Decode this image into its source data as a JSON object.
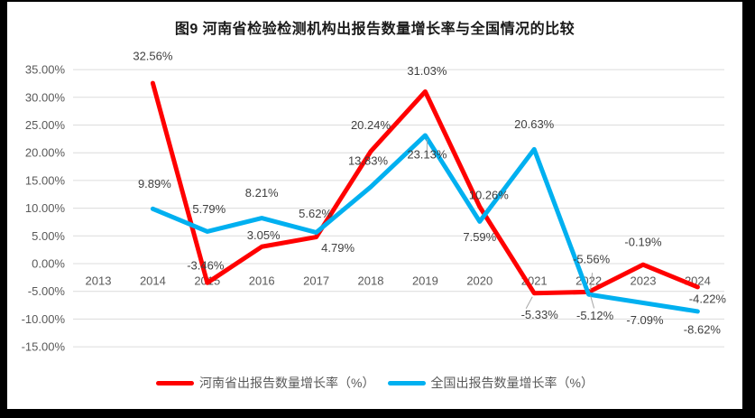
{
  "frame": {
    "border_color": "#000000",
    "background": "#ffffff"
  },
  "chart_data": {
    "type": "line",
    "title": "图9  河南省检验检测机构出报告数量增长率与全国情况的比较",
    "categories": [
      "2013",
      "2014",
      "2015",
      "2016",
      "2017",
      "2018",
      "2019",
      "2020",
      "2021",
      "2022",
      "2023",
      "2024"
    ],
    "series": [
      {
        "key": "henan-province",
        "name": "河南省出报告数量增长率（%）",
        "color": "#FF0000",
        "values": [
          null,
          32.56,
          -3.46,
          3.05,
          4.79,
          20.24,
          31.03,
          10.26,
          -5.33,
          -5.12,
          -0.19,
          -4.22
        ],
        "labels": [
          null,
          "32.56%",
          "-3.46%",
          "3.05%",
          "4.79%",
          "20.24%",
          "31.03%",
          "10.26%",
          "-5.33%",
          "-5.12%",
          "-0.19%",
          "-4.22%"
        ],
        "label_offsets": [
          null,
          [
            0,
            -30
          ],
          [
            -2,
            -19
          ],
          [
            2,
            -13
          ],
          [
            24,
            12
          ],
          [
            0,
            -29
          ],
          [
            2,
            -23
          ],
          [
            10,
            -13
          ],
          [
            6,
            24
          ],
          [
            7,
            26
          ],
          [
            0,
            -25
          ],
          [
            11,
            13
          ]
        ]
      },
      {
        "key": "national",
        "name": "全国出报告数量增长率（%）",
        "color": "#00B0F0",
        "values": [
          null,
          9.89,
          5.79,
          8.21,
          5.62,
          13.83,
          23.13,
          7.59,
          20.63,
          -5.56,
          -7.09,
          -8.62
        ],
        "labels": [
          null,
          "9.89%",
          "5.79%",
          "8.21%",
          "5.62%",
          "13.83%",
          "23.13%",
          "7.59%",
          "20.63%",
          "-5.56%",
          "-7.09%",
          "-8.62%"
        ],
        "label_offsets": [
          null,
          [
            2,
            -28
          ],
          [
            2,
            -25
          ],
          [
            0,
            -28
          ],
          [
            -1,
            -21
          ],
          [
            -3,
            -29
          ],
          [
            2,
            21
          ],
          [
            0,
            17
          ],
          [
            0,
            -28
          ],
          [
            3,
            -39
          ],
          [
            2,
            19
          ],
          [
            5,
            20
          ]
        ]
      }
    ],
    "y_axis": {
      "tick_labels": [
        "35.00%",
        "30.00%",
        "25.00%",
        "20.00%",
        "15.00%",
        "10.00%",
        "5.00%",
        "0.00%",
        "-5.00%",
        "-10.00%",
        "-15.00%"
      ],
      "min": -15,
      "max": 35,
      "step": 5
    },
    "leader_lines": [
      {
        "series": 0,
        "index": 8,
        "from": [
          -2,
          4
        ],
        "to": [
          -9,
          17
        ]
      },
      {
        "series": 0,
        "index": 9,
        "from": [
          2,
          4
        ],
        "to": [
          6,
          18
        ]
      },
      {
        "series": 1,
        "index": 6,
        "from": [
          2,
          4
        ],
        "to": [
          2,
          16
        ]
      },
      {
        "series": 1,
        "index": 9,
        "from": [
          2,
          -5
        ],
        "to": [
          4,
          -24
        ]
      }
    ],
    "grid": true,
    "grid_color": "#DCDCDC",
    "leader_color": "#A6A6A6",
    "legend_position": "bottom"
  }
}
